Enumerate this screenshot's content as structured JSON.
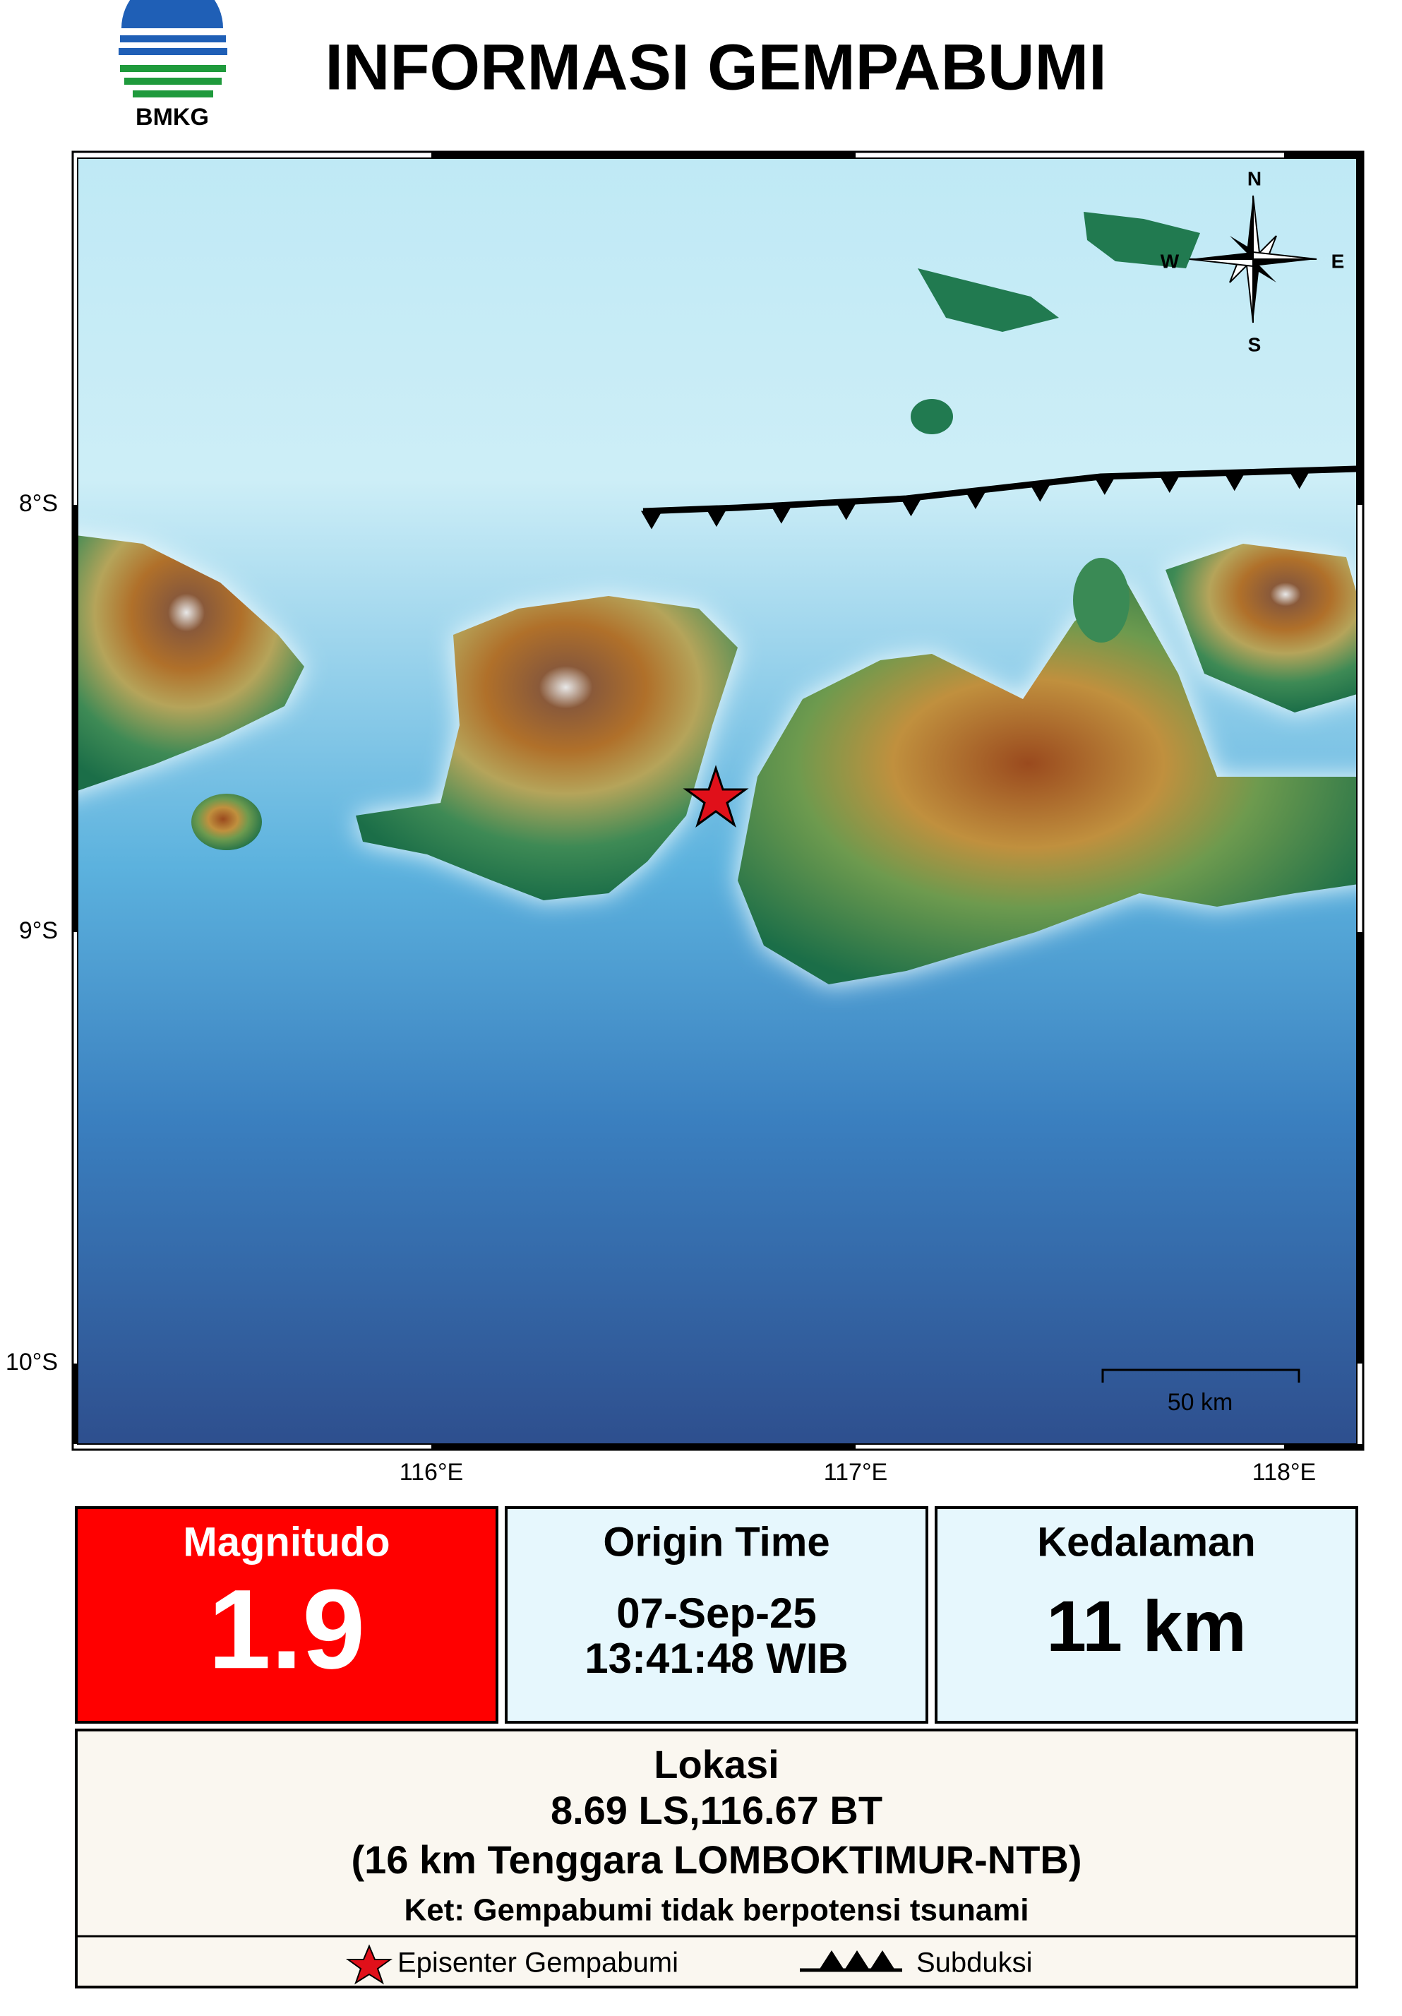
{
  "header": {
    "title": "INFORMASI GEMPABUMI",
    "logo_text": "BMKG"
  },
  "map": {
    "lat_labels": [
      "8°S",
      "9°S",
      "10°S"
    ],
    "lon_labels": [
      "116°E",
      "117°E",
      "118°E"
    ],
    "compass": {
      "n": "N",
      "e": "E",
      "s": "S",
      "w": "W"
    },
    "scale_label": "50 km"
  },
  "info": {
    "magnitude": {
      "label": "Magnitudo",
      "value": "1.9"
    },
    "origin_time": {
      "label": "Origin Time",
      "date": "07-Sep-25",
      "time": "13:41:48 WIB"
    },
    "depth": {
      "label": "Kedalaman",
      "value": "11 km"
    }
  },
  "location": {
    "label": "Lokasi",
    "coordinates": "8.69 LS,116.67 BT",
    "description": "(16 km Tenggara LOMBOKTIMUR-NTB)",
    "note": "Ket: Gempabumi tidak berpotensi tsunami"
  },
  "legend": {
    "epicenter": "Episenter Gempabumi",
    "subduction": "Subduksi"
  }
}
